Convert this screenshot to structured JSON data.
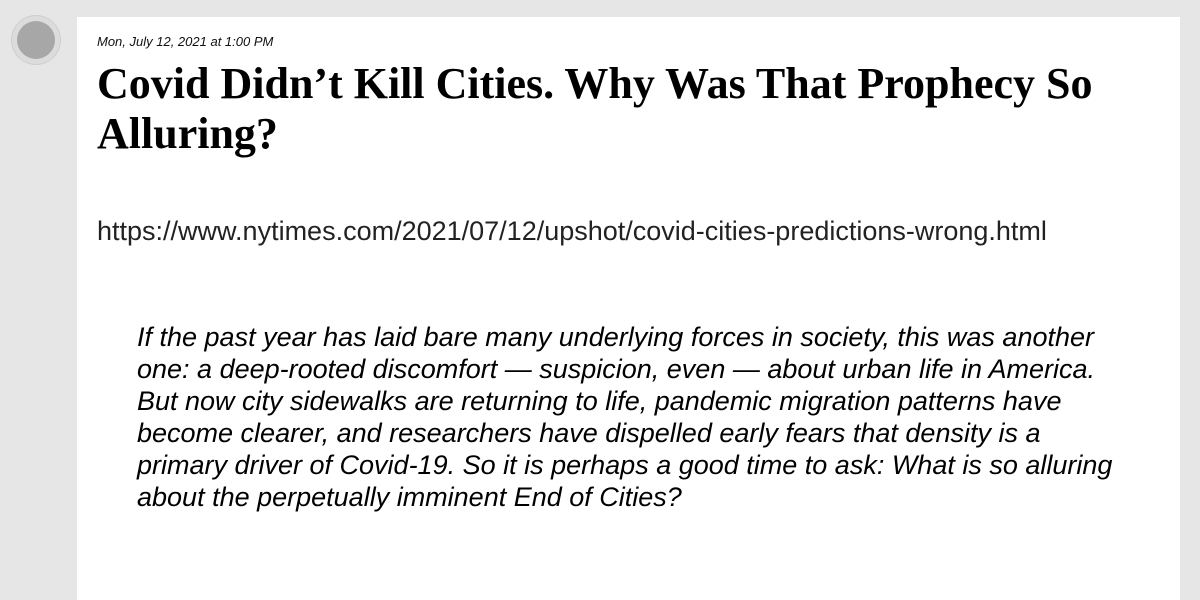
{
  "post": {
    "timestamp": "Mon, July 12, 2021 at 1:00 PM",
    "headline": "Covid Didn’t Kill Cities. Why Was That Prophecy So Alluring?",
    "url": "https://www.nytimes.com/2021/07/12/upshot/covid-cities-predictions-wrong.html",
    "quote": "If the past year has laid bare many underlying forces in society, this was another one: a deep-rooted discomfort — suspicion, even — about urban life in America. But now city sidewalks are returning to life, pandemic migration patterns have become clearer, and researchers have dispelled early fears that density is a primary driver of Covid-19. So it is perhaps a good time to ask: What is so alluring about the perpetually imminent End of Cities?"
  },
  "colors": {
    "page_background": "#e6e6e6",
    "card_background": "#ffffff",
    "avatar": "#a7a7a7",
    "text": "#000000"
  }
}
